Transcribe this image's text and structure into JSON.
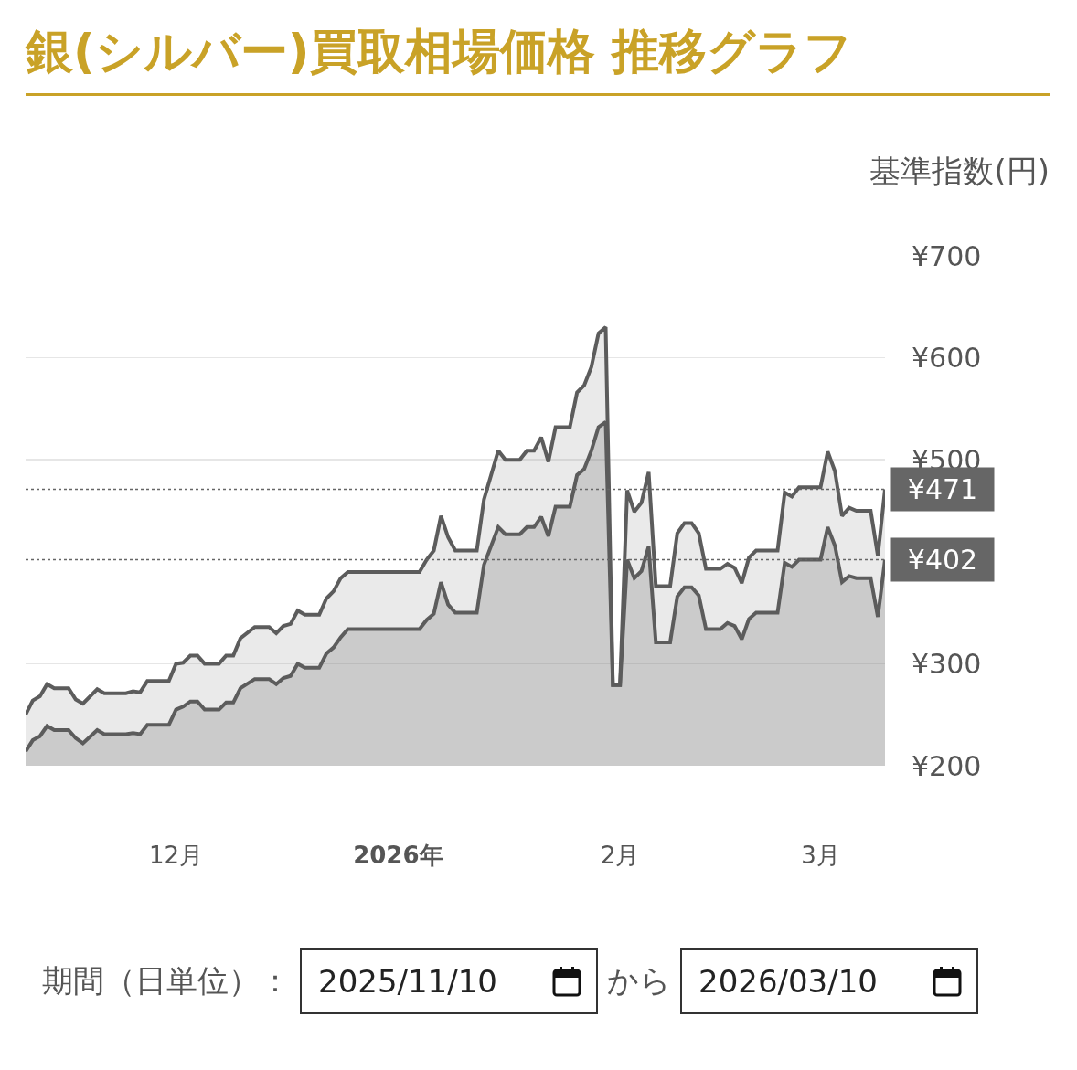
{
  "chart_data": {
    "type": "area",
    "title": "銀(シルバー)買取相場価格 推移グラフ",
    "ylabel": "基準指数(円)",
    "x": [
      "2025-11-10",
      "2025-11-11",
      "2025-11-12",
      "2025-11-13",
      "2025-11-14",
      "2025-11-16",
      "2025-11-17",
      "2025-11-18",
      "2025-11-20",
      "2025-11-21",
      "2025-11-24",
      "2025-11-25",
      "2025-11-26",
      "2025-11-27",
      "2025-11-30",
      "2025-12-01",
      "2025-12-02",
      "2025-12-03",
      "2025-12-04",
      "2025-12-05",
      "2025-12-07",
      "2025-12-08",
      "2025-12-09",
      "2025-12-10",
      "2025-12-12",
      "2025-12-14",
      "2025-12-15",
      "2025-12-16",
      "2025-12-17",
      "2025-12-18",
      "2025-12-19",
      "2025-12-21",
      "2025-12-22",
      "2025-12-23",
      "2025-12-24",
      "2025-12-25",
      "2026-01-04",
      "2026-01-05",
      "2026-01-06",
      "2026-01-07",
      "2026-01-08",
      "2026-01-09",
      "2026-01-12",
      "2026-01-13",
      "2026-01-15",
      "2026-01-16",
      "2026-01-18",
      "2026-01-19",
      "2026-01-20",
      "2026-01-21",
      "2026-01-22",
      "2026-01-23",
      "2026-01-25",
      "2026-01-26",
      "2026-01-27",
      "2026-01-28",
      "2026-01-29",
      "2026-01-30",
      "2026-01-31",
      "2026-02-01",
      "2026-02-02",
      "2026-02-03",
      "2026-02-04",
      "2026-02-05",
      "2026-02-06",
      "2026-02-08",
      "2026-02-09",
      "2026-02-10",
      "2026-02-11",
      "2026-02-12",
      "2026-02-13",
      "2026-02-15",
      "2026-02-16",
      "2026-02-17",
      "2026-02-18",
      "2026-02-19",
      "2026-02-20",
      "2026-02-23",
      "2026-02-24",
      "2026-02-25",
      "2026-02-26",
      "2026-03-01",
      "2026-03-02",
      "2026-03-03",
      "2026-03-04",
      "2026-03-05",
      "2026-03-06",
      "2026-03-08",
      "2026-03-09",
      "2026-03-10"
    ],
    "series": [
      {
        "color": "#5c5c5c",
        "values": [
          250,
          264,
          268,
          280,
          276,
          276,
          265,
          261,
          275,
          271,
          271,
          273,
          272,
          283,
          283,
          300,
          301,
          308,
          308,
          300,
          300,
          308,
          308,
          325,
          336,
          336,
          330,
          337,
          339,
          352,
          348,
          348,
          364,
          371,
          384,
          390,
          390,
          402,
          411,
          445,
          424,
          411,
          411,
          461,
          509,
          500,
          500,
          509,
          509,
          522,
          498,
          532,
          532,
          566,
          573,
          591,
          624,
          630,
          279,
          279,
          470,
          449,
          458,
          488,
          376,
          376,
          428,
          438,
          438,
          428,
          393,
          393,
          398,
          394,
          379,
          404,
          411,
          411,
          468,
          464,
          473,
          473,
          508,
          489,
          445,
          453,
          450,
          450,
          406,
          471
        ]
      },
      {
        "color": "#5c5c5c",
        "values": [
          214,
          225,
          229,
          239,
          235,
          235,
          227,
          222,
          235,
          231,
          231,
          232,
          231,
          240,
          240,
          255,
          258,
          263,
          263,
          255,
          255,
          262,
          262,
          276,
          285,
          285,
          280,
          286,
          288,
          300,
          296,
          296,
          310,
          316,
          326,
          334,
          334,
          343,
          349,
          380,
          358,
          350,
          350,
          397,
          434,
          427,
          427,
          434,
          434,
          444,
          425,
          454,
          454,
          485,
          491,
          509,
          532,
          537,
          279,
          279,
          402,
          384,
          391,
          415,
          321,
          321,
          366,
          375,
          375,
          367,
          334,
          334,
          340,
          337,
          324,
          344,
          350,
          350,
          399,
          395,
          402,
          402,
          434,
          416,
          380,
          386,
          384,
          384,
          346,
          402
        ]
      }
    ],
    "xlim": [
      "2025-11-10",
      "2026-03-10"
    ],
    "xticks": [
      {
        "value": "2025-12-01",
        "label": "12月"
      },
      {
        "value": "2026-01-01",
        "label": "2026年"
      },
      {
        "value": "2026-02-01",
        "label": "2月"
      },
      {
        "value": "2026-03-01",
        "label": "3月"
      }
    ],
    "ylim": [
      200,
      700
    ],
    "yticks": [
      {
        "value": 200,
        "label": "¥200"
      },
      {
        "value": 300,
        "label": "¥300"
      },
      {
        "value": 500,
        "label": "¥500"
      },
      {
        "value": 600,
        "label": "¥600"
      },
      {
        "value": 700,
        "label": "¥700"
      }
    ],
    "grid": "y",
    "ref_lines": [
      {
        "axis": "y",
        "value": 471,
        "label": "¥471",
        "line_style": "dotted",
        "color": "#666666"
      },
      {
        "axis": "y",
        "value": 402,
        "label": "¥402",
        "line_style": "dotted",
        "color": "#666666"
      }
    ],
    "annotations": [
      "期間（日単位）：",
      "2025/11/10",
      "から",
      "2026/03/10"
    ]
  }
}
